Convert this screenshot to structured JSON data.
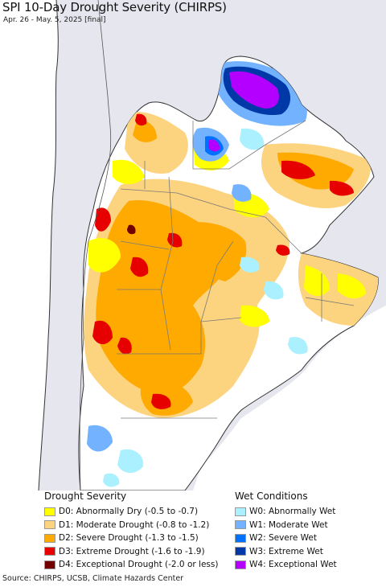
{
  "title": "SPI 10-Day Drought Severity (CHIRPS)",
  "subtitle": "Apr. 26 - May. 5, 2025 [final]",
  "colors": {
    "ocean": "#ffffff",
    "outside_region": "#e6e6ee",
    "land_normal": "#ffffff",
    "border": "#7a7a7a",
    "coast": "#333333"
  },
  "legend": {
    "drought": {
      "heading": "Drought Severity",
      "items": [
        {
          "label": "D0: Abnormally Dry (-0.5 to -0.7)",
          "color": "#ffff00"
        },
        {
          "label": "D1: Moderate Drought (-0.8 to -1.2)",
          "color": "#fcd37f"
        },
        {
          "label": "D2: Severe Drought (-1.3 to -1.5)",
          "color": "#ffaa00"
        },
        {
          "label": "D3: Extreme Drought (-1.6 to -1.9)",
          "color": "#e60000"
        },
        {
          "label": "D4: Exceptional Drought (-2.0 or less)",
          "color": "#730000"
        }
      ]
    },
    "wet": {
      "heading": "Wet Conditions",
      "items": [
        {
          "label": "W0: Abnormally Wet",
          "color": "#aaf0ff"
        },
        {
          "label": "W1: Moderate Wet",
          "color": "#73b2ff"
        },
        {
          "label": "W2: Severe Wet",
          "color": "#0070ff"
        },
        {
          "label": "W3: Extreme Wet",
          "color": "#0038a8"
        },
        {
          "label": "W4: Exceptional Wet",
          "color": "#b400ff"
        }
      ]
    }
  },
  "source": "Source: CHIRPS, UCSB, Climate Hazards Center"
}
